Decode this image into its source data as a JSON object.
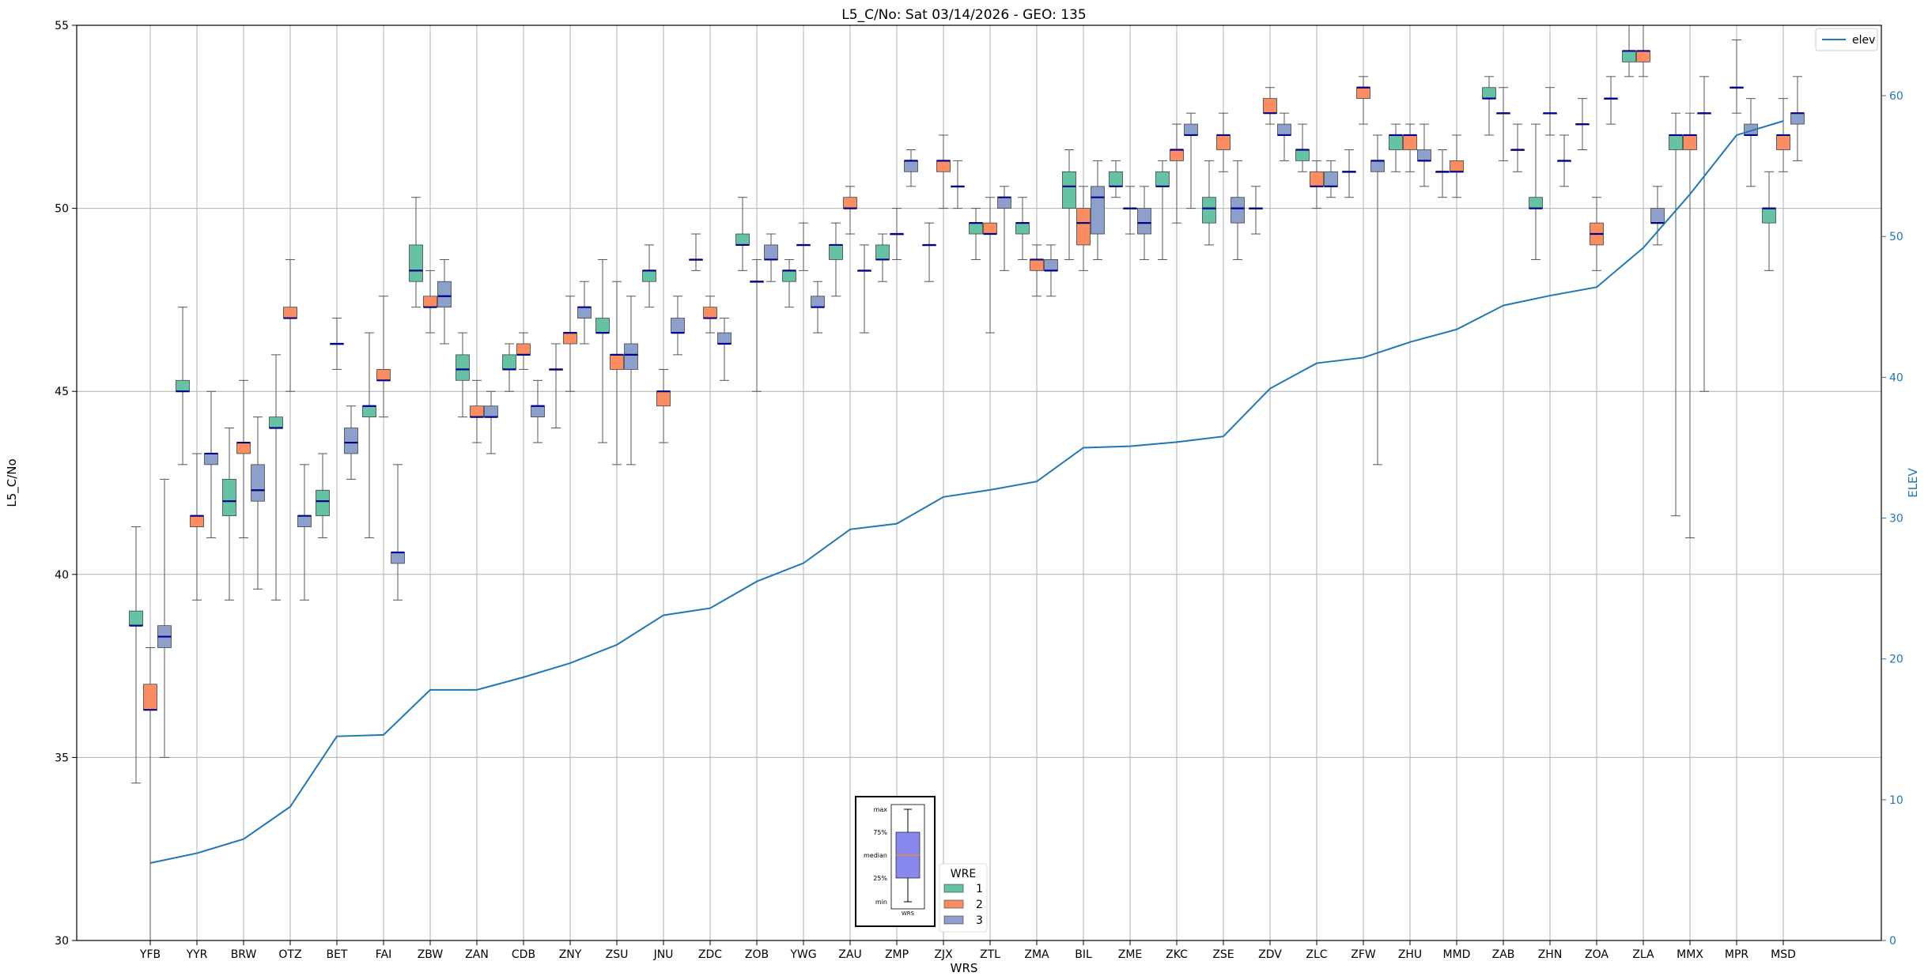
{
  "chart_data": {
    "type": "box",
    "title": "L5_C/No: Sat 03/14/2026 - GEO: 135",
    "xlabel": "WRS",
    "ylabel": "L5_C/No",
    "ylabel_right": "ELEV",
    "ylim": [
      30,
      55
    ],
    "ylim_right": [
      0,
      65
    ],
    "yticks": [
      30,
      35,
      40,
      45,
      50,
      55
    ],
    "yticks_right": [
      0,
      10,
      20,
      30,
      40,
      50,
      60
    ],
    "grid": true,
    "categories": [
      "YFB",
      "YYR",
      "BRW",
      "OTZ",
      "BET",
      "FAI",
      "ZBW",
      "ZAN",
      "CDB",
      "ZNY",
      "ZSU",
      "JNU",
      "ZDC",
      "ZOB",
      "YWG",
      "ZAU",
      "ZMP",
      "ZJX",
      "ZTL",
      "ZMA",
      "BIL",
      "ZME",
      "ZKC",
      "ZSE",
      "ZDV",
      "ZLC",
      "ZFW",
      "ZHU",
      "MMD",
      "ZAB",
      "ZHN",
      "ZOA",
      "ZLA",
      "MMX",
      "MPR",
      "MSD"
    ],
    "wre_colors": {
      "1": "#66c2a5",
      "2": "#fc8d62",
      "3": "#8da0cb"
    },
    "median_color": "#00008b",
    "boxes": [
      {
        "c": "YFB",
        "w": 1,
        "min": 34.3,
        "q1": 38.6,
        "med": 38.6,
        "q3": 39.0,
        "max": 41.3
      },
      {
        "c": "YFB",
        "w": 2,
        "min": 30.0,
        "q1": 36.3,
        "med": 36.3,
        "q3": 37.0,
        "max": 38.0
      },
      {
        "c": "YFB",
        "w": 3,
        "min": 35.0,
        "q1": 38.0,
        "med": 38.3,
        "q3": 38.6,
        "max": 42.6
      },
      {
        "c": "YYR",
        "w": 1,
        "min": 43.0,
        "q1": 45.0,
        "med": 45.0,
        "q3": 45.3,
        "max": 47.3
      },
      {
        "c": "YYR",
        "w": 2,
        "min": 39.3,
        "q1": 41.3,
        "med": 41.6,
        "q3": 41.6,
        "max": 43.3
      },
      {
        "c": "YYR",
        "w": 3,
        "min": 41.0,
        "q1": 43.0,
        "med": 43.3,
        "q3": 43.3,
        "max": 45.0
      },
      {
        "c": "BRW",
        "w": 1,
        "min": 39.3,
        "q1": 41.6,
        "med": 42.0,
        "q3": 42.6,
        "max": 44.0
      },
      {
        "c": "BRW",
        "w": 2,
        "min": 41.0,
        "q1": 43.3,
        "med": 43.6,
        "q3": 43.6,
        "max": 45.3
      },
      {
        "c": "BRW",
        "w": 3,
        "min": 39.6,
        "q1": 42.0,
        "med": 42.3,
        "q3": 43.0,
        "max": 44.3
      },
      {
        "c": "OTZ",
        "w": 1,
        "min": 39.3,
        "q1": 44.0,
        "med": 44.0,
        "q3": 44.3,
        "max": 46.0
      },
      {
        "c": "OTZ",
        "w": 2,
        "min": 45.0,
        "q1": 47.0,
        "med": 47.0,
        "q3": 47.3,
        "max": 48.6
      },
      {
        "c": "OTZ",
        "w": 3,
        "min": 39.3,
        "q1": 41.3,
        "med": 41.6,
        "q3": 41.6,
        "max": 43.0
      },
      {
        "c": "BET",
        "w": 1,
        "min": 41.0,
        "q1": 41.6,
        "med": 42.0,
        "q3": 42.3,
        "max": 43.3
      },
      {
        "c": "BET",
        "w": 2,
        "min": 45.6,
        "q1": 46.3,
        "med": 46.3,
        "q3": 46.3,
        "max": 47.0
      },
      {
        "c": "BET",
        "w": 3,
        "min": 42.6,
        "q1": 43.3,
        "med": 43.6,
        "q3": 44.0,
        "max": 44.6
      },
      {
        "c": "FAI",
        "w": 1,
        "min": 41.0,
        "q1": 44.3,
        "med": 44.6,
        "q3": 44.6,
        "max": 46.6
      },
      {
        "c": "FAI",
        "w": 2,
        "min": 44.3,
        "q1": 45.3,
        "med": 45.3,
        "q3": 45.6,
        "max": 47.6
      },
      {
        "c": "FAI",
        "w": 3,
        "min": 39.3,
        "q1": 40.3,
        "med": 40.6,
        "q3": 40.6,
        "max": 43.0
      },
      {
        "c": "ZBW",
        "w": 1,
        "min": 47.3,
        "q1": 48.0,
        "med": 48.3,
        "q3": 49.0,
        "max": 50.3
      },
      {
        "c": "ZBW",
        "w": 2,
        "min": 46.6,
        "q1": 47.3,
        "med": 47.3,
        "q3": 47.6,
        "max": 48.3
      },
      {
        "c": "ZBW",
        "w": 3,
        "min": 46.3,
        "q1": 47.3,
        "med": 47.6,
        "q3": 48.0,
        "max": 48.6
      },
      {
        "c": "ZAN",
        "w": 1,
        "min": 44.3,
        "q1": 45.3,
        "med": 45.6,
        "q3": 46.0,
        "max": 46.6
      },
      {
        "c": "ZAN",
        "w": 2,
        "min": 43.6,
        "q1": 44.3,
        "med": 44.3,
        "q3": 44.6,
        "max": 45.3
      },
      {
        "c": "ZAN",
        "w": 3,
        "min": 43.3,
        "q1": 44.3,
        "med": 44.3,
        "q3": 44.6,
        "max": 45.0
      },
      {
        "c": "CDB",
        "w": 1,
        "min": 45.0,
        "q1": 45.6,
        "med": 45.6,
        "q3": 46.0,
        "max": 46.3
      },
      {
        "c": "CDB",
        "w": 2,
        "min": 45.6,
        "q1": 46.0,
        "med": 46.0,
        "q3": 46.3,
        "max": 46.6
      },
      {
        "c": "CDB",
        "w": 3,
        "min": 43.6,
        "q1": 44.3,
        "med": 44.6,
        "q3": 44.6,
        "max": 45.3
      },
      {
        "c": "ZNY",
        "w": 1,
        "min": 44.0,
        "q1": 45.6,
        "med": 45.6,
        "q3": 45.6,
        "max": 46.3
      },
      {
        "c": "ZNY",
        "w": 2,
        "min": 45.0,
        "q1": 46.3,
        "med": 46.6,
        "q3": 46.6,
        "max": 47.6
      },
      {
        "c": "ZNY",
        "w": 3,
        "min": 46.3,
        "q1": 47.0,
        "med": 47.3,
        "q3": 47.3,
        "max": 48.0
      },
      {
        "c": "ZSU",
        "w": 1,
        "min": 43.6,
        "q1": 46.6,
        "med": 46.6,
        "q3": 47.0,
        "max": 48.6
      },
      {
        "c": "ZSU",
        "w": 2,
        "min": 43.0,
        "q1": 45.6,
        "med": 46.0,
        "q3": 46.0,
        "max": 48.0
      },
      {
        "c": "ZSU",
        "w": 3,
        "min": 43.0,
        "q1": 45.6,
        "med": 46.0,
        "q3": 46.3,
        "max": 47.6
      },
      {
        "c": "JNU",
        "w": 1,
        "min": 47.3,
        "q1": 48.0,
        "med": 48.3,
        "q3": 48.3,
        "max": 49.0
      },
      {
        "c": "JNU",
        "w": 2,
        "min": 43.6,
        "q1": 44.6,
        "med": 45.0,
        "q3": 45.0,
        "max": 45.6
      },
      {
        "c": "JNU",
        "w": 3,
        "min": 46.0,
        "q1": 46.6,
        "med": 46.6,
        "q3": 47.0,
        "max": 47.6
      },
      {
        "c": "ZDC",
        "w": 1,
        "min": 48.3,
        "q1": 48.6,
        "med": 48.6,
        "q3": 48.6,
        "max": 49.3
      },
      {
        "c": "ZDC",
        "w": 2,
        "min": 46.6,
        "q1": 47.0,
        "med": 47.0,
        "q3": 47.3,
        "max": 47.6
      },
      {
        "c": "ZDC",
        "w": 3,
        "min": 45.3,
        "q1": 46.3,
        "med": 46.3,
        "q3": 46.6,
        "max": 47.0
      },
      {
        "c": "ZOB",
        "w": 1,
        "min": 48.3,
        "q1": 49.0,
        "med": 49.0,
        "q3": 49.3,
        "max": 50.3
      },
      {
        "c": "ZOB",
        "w": 2,
        "min": 45.0,
        "q1": 48.0,
        "med": 48.0,
        "q3": 48.0,
        "max": 48.6
      },
      {
        "c": "ZOB",
        "w": 3,
        "min": 48.0,
        "q1": 48.6,
        "med": 48.6,
        "q3": 49.0,
        "max": 49.3
      },
      {
        "c": "YWG",
        "w": 1,
        "min": 47.3,
        "q1": 48.0,
        "med": 48.3,
        "q3": 48.3,
        "max": 48.6
      },
      {
        "c": "YWG",
        "w": 2,
        "min": 48.3,
        "q1": 49.0,
        "med": 49.0,
        "q3": 49.0,
        "max": 49.6
      },
      {
        "c": "YWG",
        "w": 3,
        "min": 46.6,
        "q1": 47.3,
        "med": 47.3,
        "q3": 47.6,
        "max": 48.0
      },
      {
        "c": "ZAU",
        "w": 1,
        "min": 47.6,
        "q1": 48.6,
        "med": 49.0,
        "q3": 49.0,
        "max": 49.6
      },
      {
        "c": "ZAU",
        "w": 2,
        "min": 49.3,
        "q1": 50.0,
        "med": 50.0,
        "q3": 50.3,
        "max": 50.6
      },
      {
        "c": "ZAU",
        "w": 3,
        "min": 46.6,
        "q1": 48.3,
        "med": 48.3,
        "q3": 48.3,
        "max": 49.0
      },
      {
        "c": "ZMP",
        "w": 1,
        "min": 48.0,
        "q1": 48.6,
        "med": 48.6,
        "q3": 49.0,
        "max": 49.3
      },
      {
        "c": "ZMP",
        "w": 2,
        "min": 48.6,
        "q1": 49.3,
        "med": 49.3,
        "q3": 49.3,
        "max": 50.0
      },
      {
        "c": "ZMP",
        "w": 3,
        "min": 50.6,
        "q1": 51.0,
        "med": 51.3,
        "q3": 51.3,
        "max": 51.6
      },
      {
        "c": "ZJX",
        "w": 1,
        "min": 48.0,
        "q1": 49.0,
        "med": 49.0,
        "q3": 49.0,
        "max": 49.6
      },
      {
        "c": "ZJX",
        "w": 2,
        "min": 50.0,
        "q1": 51.0,
        "med": 51.3,
        "q3": 51.3,
        "max": 52.0
      },
      {
        "c": "ZJX",
        "w": 3,
        "min": 50.0,
        "q1": 50.6,
        "med": 50.6,
        "q3": 50.6,
        "max": 51.3
      },
      {
        "c": "ZTL",
        "w": 1,
        "min": 48.6,
        "q1": 49.3,
        "med": 49.6,
        "q3": 49.6,
        "max": 50.0
      },
      {
        "c": "ZTL",
        "w": 2,
        "min": 46.6,
        "q1": 49.3,
        "med": 49.3,
        "q3": 49.6,
        "max": 50.3
      },
      {
        "c": "ZTL",
        "w": 3,
        "min": 48.3,
        "q1": 50.0,
        "med": 50.3,
        "q3": 50.3,
        "max": 50.6
      },
      {
        "c": "ZMA",
        "w": 1,
        "min": 48.6,
        "q1": 49.3,
        "med": 49.6,
        "q3": 49.6,
        "max": 50.3
      },
      {
        "c": "ZMA",
        "w": 2,
        "min": 47.6,
        "q1": 48.3,
        "med": 48.6,
        "q3": 48.6,
        "max": 49.0
      },
      {
        "c": "ZMA",
        "w": 3,
        "min": 47.6,
        "q1": 48.3,
        "med": 48.3,
        "q3": 48.6,
        "max": 49.0
      },
      {
        "c": "BIL",
        "w": 1,
        "min": 48.6,
        "q1": 50.0,
        "med": 50.6,
        "q3": 51.0,
        "max": 51.6
      },
      {
        "c": "BIL",
        "w": 2,
        "min": 48.3,
        "q1": 49.0,
        "med": 49.6,
        "q3": 50.0,
        "max": 50.6
      },
      {
        "c": "BIL",
        "w": 3,
        "min": 48.6,
        "q1": 49.3,
        "med": 50.3,
        "q3": 50.6,
        "max": 51.3
      },
      {
        "c": "ZME",
        "w": 1,
        "min": 50.3,
        "q1": 50.6,
        "med": 50.6,
        "q3": 51.0,
        "max": 51.3
      },
      {
        "c": "ZME",
        "w": 2,
        "min": 49.3,
        "q1": 50.0,
        "med": 50.0,
        "q3": 50.0,
        "max": 50.6
      },
      {
        "c": "ZME",
        "w": 3,
        "min": 48.6,
        "q1": 49.3,
        "med": 49.6,
        "q3": 50.0,
        "max": 50.6
      },
      {
        "c": "ZKC",
        "w": 1,
        "min": 48.6,
        "q1": 50.6,
        "med": 50.6,
        "q3": 51.0,
        "max": 51.3
      },
      {
        "c": "ZKC",
        "w": 2,
        "min": 49.6,
        "q1": 51.3,
        "med": 51.6,
        "q3": 51.6,
        "max": 52.3
      },
      {
        "c": "ZKC",
        "w": 3,
        "min": 50.0,
        "q1": 52.0,
        "med": 52.0,
        "q3": 52.3,
        "max": 52.6
      },
      {
        "c": "ZSE",
        "w": 1,
        "min": 49.0,
        "q1": 49.6,
        "med": 50.0,
        "q3": 50.3,
        "max": 51.3
      },
      {
        "c": "ZSE",
        "w": 2,
        "min": 51.0,
        "q1": 51.6,
        "med": 52.0,
        "q3": 52.0,
        "max": 52.6
      },
      {
        "c": "ZSE",
        "w": 3,
        "min": 48.6,
        "q1": 49.6,
        "med": 50.0,
        "q3": 50.3,
        "max": 51.3
      },
      {
        "c": "ZDV",
        "w": 1,
        "min": 49.3,
        "q1": 50.0,
        "med": 50.0,
        "q3": 50.0,
        "max": 50.6
      },
      {
        "c": "ZDV",
        "w": 2,
        "min": 52.3,
        "q1": 52.6,
        "med": 52.6,
        "q3": 53.0,
        "max": 53.3
      },
      {
        "c": "ZDV",
        "w": 3,
        "min": 51.3,
        "q1": 52.0,
        "med": 52.0,
        "q3": 52.3,
        "max": 52.6
      },
      {
        "c": "ZLC",
        "w": 1,
        "min": 51.0,
        "q1": 51.3,
        "med": 51.6,
        "q3": 51.6,
        "max": 52.3
      },
      {
        "c": "ZLC",
        "w": 2,
        "min": 50.0,
        "q1": 50.6,
        "med": 50.6,
        "q3": 51.0,
        "max": 51.3
      },
      {
        "c": "ZLC",
        "w": 3,
        "min": 50.3,
        "q1": 50.6,
        "med": 50.6,
        "q3": 51.0,
        "max": 51.3
      },
      {
        "c": "ZFW",
        "w": 1,
        "min": 50.3,
        "q1": 51.0,
        "med": 51.0,
        "q3": 51.0,
        "max": 51.6
      },
      {
        "c": "ZFW",
        "w": 2,
        "min": 52.3,
        "q1": 53.0,
        "med": 53.3,
        "q3": 53.3,
        "max": 53.6
      },
      {
        "c": "ZFW",
        "w": 3,
        "min": 43.0,
        "q1": 51.0,
        "med": 51.3,
        "q3": 51.3,
        "max": 52.0
      },
      {
        "c": "ZHU",
        "w": 1,
        "min": 51.0,
        "q1": 51.6,
        "med": 52.0,
        "q3": 52.0,
        "max": 52.3
      },
      {
        "c": "ZHU",
        "w": 2,
        "min": 51.0,
        "q1": 51.6,
        "med": 52.0,
        "q3": 52.0,
        "max": 52.3
      },
      {
        "c": "ZHU",
        "w": 3,
        "min": 50.6,
        "q1": 51.3,
        "med": 51.3,
        "q3": 51.6,
        "max": 52.3
      },
      {
        "c": "MMD",
        "w": 1,
        "min": 50.3,
        "q1": 51.0,
        "med": 51.0,
        "q3": 51.0,
        "max": 51.6
      },
      {
        "c": "MMD",
        "w": 2,
        "min": 50.3,
        "q1": 51.0,
        "med": 51.0,
        "q3": 51.3,
        "max": 52.0
      },
      {
        "c": "MMD",
        "w": 3,
        "min": null,
        "q1": null,
        "med": null,
        "q3": null,
        "max": null
      },
      {
        "c": "ZAB",
        "w": 1,
        "min": 52.0,
        "q1": 53.0,
        "med": 53.0,
        "q3": 53.3,
        "max": 53.6
      },
      {
        "c": "ZAB",
        "w": 2,
        "min": 51.3,
        "q1": 52.6,
        "med": 52.6,
        "q3": 52.6,
        "max": 53.3
      },
      {
        "c": "ZAB",
        "w": 3,
        "min": 51.0,
        "q1": 51.6,
        "med": 51.6,
        "q3": 51.6,
        "max": 52.3
      },
      {
        "c": "ZHN",
        "w": 1,
        "min": 48.6,
        "q1": 50.0,
        "med": 50.0,
        "q3": 50.3,
        "max": 52.3
      },
      {
        "c": "ZHN",
        "w": 2,
        "min": 52.0,
        "q1": 52.6,
        "med": 52.6,
        "q3": 52.6,
        "max": 53.3
      },
      {
        "c": "ZHN",
        "w": 3,
        "min": 50.6,
        "q1": 51.3,
        "med": 51.3,
        "q3": 51.3,
        "max": 52.0
      },
      {
        "c": "ZOA",
        "w": 1,
        "min": 51.6,
        "q1": 52.3,
        "med": 52.3,
        "q3": 52.3,
        "max": 53.0
      },
      {
        "c": "ZOA",
        "w": 2,
        "min": 48.3,
        "q1": 49.0,
        "med": 49.3,
        "q3": 49.6,
        "max": 50.3
      },
      {
        "c": "ZOA",
        "w": 3,
        "min": 52.3,
        "q1": 53.0,
        "med": 53.0,
        "q3": 53.0,
        "max": 53.6
      },
      {
        "c": "ZLA",
        "w": 1,
        "min": 53.6,
        "q1": 54.0,
        "med": 54.3,
        "q3": 54.3,
        "max": 55.0
      },
      {
        "c": "ZLA",
        "w": 2,
        "min": 53.6,
        "q1": 54.0,
        "med": 54.3,
        "q3": 54.3,
        "max": 55.0
      },
      {
        "c": "ZLA",
        "w": 3,
        "min": 49.0,
        "q1": 49.6,
        "med": 49.6,
        "q3": 50.0,
        "max": 50.6
      },
      {
        "c": "MMX",
        "w": 1,
        "min": 41.6,
        "q1": 51.6,
        "med": 52.0,
        "q3": 52.0,
        "max": 52.6
      },
      {
        "c": "MMX",
        "w": 2,
        "min": 41.0,
        "q1": 51.6,
        "med": 52.0,
        "q3": 52.0,
        "max": 52.6
      },
      {
        "c": "MMX",
        "w": 3,
        "min": 45.0,
        "q1": 52.6,
        "med": 52.6,
        "q3": 52.6,
        "max": 53.6
      },
      {
        "c": "MPR",
        "w": 1,
        "min": null,
        "q1": null,
        "med": null,
        "q3": null,
        "max": null
      },
      {
        "c": "MPR",
        "w": 2,
        "min": 52.6,
        "q1": 53.3,
        "med": 53.3,
        "q3": 53.3,
        "max": 54.6
      },
      {
        "c": "MPR",
        "w": 3,
        "min": 50.6,
        "q1": 52.0,
        "med": 52.0,
        "q3": 52.3,
        "max": 53.0
      },
      {
        "c": "MSD",
        "w": 1,
        "min": 48.3,
        "q1": 49.6,
        "med": 50.0,
        "q3": 50.0,
        "max": 51.0
      },
      {
        "c": "MSD",
        "w": 2,
        "min": 51.0,
        "q1": 51.6,
        "med": 52.0,
        "q3": 52.0,
        "max": 53.0
      },
      {
        "c": "MSD",
        "w": 3,
        "min": 51.3,
        "q1": 52.3,
        "med": 52.6,
        "q3": 52.6,
        "max": 53.6
      }
    ],
    "elev_series": {
      "name": "elev",
      "color": "#1f77b4",
      "values": [
        5.5,
        6.2,
        7.2,
        9.5,
        14.5,
        14.6,
        17.8,
        17.8,
        18.7,
        19.7,
        21.0,
        23.1,
        23.6,
        25.5,
        26.8,
        29.2,
        29.6,
        31.5,
        32.0,
        32.6,
        35.0,
        35.1,
        35.4,
        35.8,
        39.2,
        41.0,
        41.4,
        42.5,
        43.4,
        45.1,
        45.8,
        46.4,
        49.2,
        53.0,
        57.2,
        58.2
      ]
    },
    "legend": {
      "label": "elev",
      "position": "top-right"
    },
    "wre_legend": {
      "title": "WRE",
      "labels": [
        "1",
        "2",
        "3"
      ],
      "position": "bottom-center"
    },
    "inset_key": {
      "labels": [
        "max",
        "75%",
        "median",
        "25%",
        "min"
      ],
      "xlabel": "WRS"
    }
  }
}
